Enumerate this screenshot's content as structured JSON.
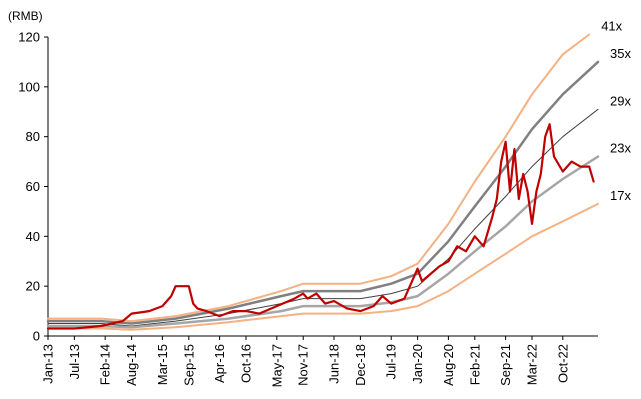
{
  "chart_data": {
    "type": "line",
    "ylabel": "(RMB)",
    "ylim": [
      0,
      120
    ],
    "yticks": [
      0,
      20,
      40,
      60,
      80,
      100,
      120
    ],
    "grid": false,
    "legend": "none",
    "xlim": [
      "2013-01",
      "2023-06"
    ],
    "xticks": [
      "Jan-13",
      "Jul-13",
      "Feb-14",
      "Aug-14",
      "Mar-15",
      "Sep-15",
      "Apr-16",
      "Oct-16",
      "May-17",
      "Nov-17",
      "Jun-18",
      "Dec-18",
      "Jul-19",
      "Jan-20",
      "Aug-20",
      "Feb-21",
      "Sep-21",
      "Mar-22",
      "Oct-22"
    ],
    "xtick_dates": [
      "2013-01",
      "2013-07",
      "2014-02",
      "2014-08",
      "2015-03",
      "2015-09",
      "2016-04",
      "2016-10",
      "2017-05",
      "2017-11",
      "2018-06",
      "2018-12",
      "2019-07",
      "2020-01",
      "2020-08",
      "2021-02",
      "2021-09",
      "2022-03",
      "2022-10"
    ],
    "series": [
      {
        "name": "41x",
        "color": "#f4b183",
        "width": 2,
        "x": [
          "2013-01",
          "2014-01",
          "2014-08",
          "2015-06",
          "2016-06",
          "2017-06",
          "2017-11",
          "2018-12",
          "2019-07",
          "2020-01",
          "2020-08",
          "2021-02",
          "2021-09",
          "2022-03",
          "2022-10",
          "2023-04"
        ],
        "y": [
          7,
          7,
          6,
          8,
          12,
          18,
          21,
          21,
          24,
          29,
          45,
          62,
          80,
          97,
          113,
          121
        ]
      },
      {
        "name": "35x",
        "color": "#808080",
        "width": 2.5,
        "x": [
          "2013-01",
          "2014-01",
          "2014-08",
          "2015-06",
          "2016-06",
          "2017-06",
          "2017-11",
          "2018-12",
          "2019-07",
          "2020-01",
          "2020-08",
          "2021-02",
          "2021-09",
          "2022-03",
          "2022-10",
          "2023-06"
        ],
        "y": [
          6,
          6,
          5,
          7,
          11,
          16,
          18,
          18,
          21,
          25,
          38,
          52,
          68,
          83,
          97,
          110
        ]
      },
      {
        "name": "29x",
        "color": "#404040",
        "width": 1,
        "x": [
          "2013-01",
          "2014-01",
          "2014-08",
          "2015-06",
          "2016-06",
          "2017-06",
          "2017-11",
          "2018-12",
          "2019-07",
          "2020-01",
          "2020-08",
          "2021-02",
          "2021-09",
          "2022-03",
          "2022-10",
          "2023-06"
        ],
        "y": [
          5,
          5,
          4,
          6,
          9,
          13,
          15,
          15,
          17,
          20,
          31,
          43,
          56,
          68,
          80,
          91
        ]
      },
      {
        "name": "23x",
        "color": "#a6a6a6",
        "width": 2.5,
        "x": [
          "2013-01",
          "2014-01",
          "2014-08",
          "2015-06",
          "2016-06",
          "2017-06",
          "2017-11",
          "2018-12",
          "2019-07",
          "2020-01",
          "2020-08",
          "2021-02",
          "2021-09",
          "2022-03",
          "2022-10",
          "2023-06"
        ],
        "y": [
          4,
          4,
          3.5,
          5,
          7,
          10,
          12,
          12,
          13.5,
          16,
          25,
          34,
          44,
          54,
          63,
          72
        ]
      },
      {
        "name": "17x",
        "color": "#f4b183",
        "width": 2,
        "x": [
          "2013-01",
          "2014-01",
          "2014-08",
          "2015-06",
          "2016-06",
          "2017-06",
          "2017-11",
          "2018-12",
          "2019-07",
          "2020-01",
          "2020-08",
          "2021-02",
          "2021-09",
          "2022-03",
          "2022-10",
          "2023-06"
        ],
        "y": [
          3,
          3,
          2.5,
          3.5,
          5.5,
          8,
          9,
          9,
          10,
          12,
          18,
          25,
          33,
          40,
          46,
          53
        ]
      },
      {
        "name": "",
        "color": "#c00000",
        "width": 2.2,
        "x": [
          "2013-01",
          "2013-07",
          "2014-01",
          "2014-06",
          "2014-08",
          "2014-12",
          "2015-03",
          "2015-05",
          "2015-06",
          "2015-09",
          "2015-10",
          "2015-11",
          "2016-01",
          "2016-04",
          "2016-07",
          "2016-10",
          "2017-01",
          "2017-05",
          "2017-09",
          "2017-11",
          "2017-12",
          "2018-02",
          "2018-04",
          "2018-06",
          "2018-09",
          "2018-12",
          "2019-03",
          "2019-05",
          "2019-07",
          "2019-10",
          "2020-01",
          "2020-02",
          "2020-04",
          "2020-06",
          "2020-08",
          "2020-10",
          "2020-12",
          "2021-02",
          "2021-04",
          "2021-06",
          "2021-07",
          "2021-08",
          "2021-09",
          "2021-10",
          "2021-11",
          "2021-12",
          "2022-01",
          "2022-02",
          "2022-03",
          "2022-04",
          "2022-05",
          "2022-06",
          "2022-07",
          "2022-08",
          "2022-10",
          "2022-12",
          "2023-02",
          "2023-04",
          "2023-05"
        ],
        "y": [
          3,
          3,
          4,
          6,
          9,
          10,
          12,
          16,
          20,
          20,
          13,
          11,
          10,
          8,
          10,
          10,
          9,
          12,
          15,
          17,
          15,
          17,
          13,
          14,
          11,
          10,
          12,
          16,
          13,
          15,
          27,
          22,
          25,
          28,
          30,
          36,
          34,
          40,
          36,
          48,
          55,
          70,
          78,
          58,
          75,
          55,
          65,
          58,
          45,
          58,
          65,
          80,
          85,
          72,
          66,
          70,
          68,
          68,
          62
        ]
      }
    ]
  }
}
